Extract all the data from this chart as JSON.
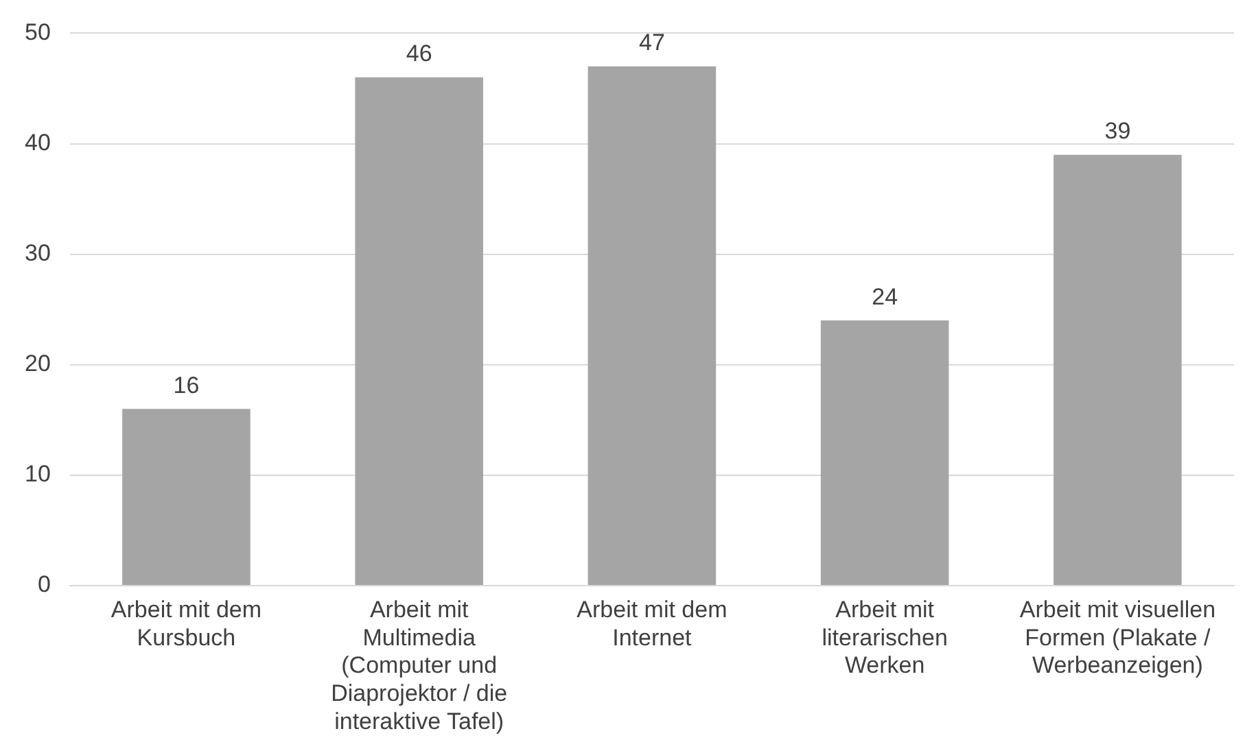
{
  "chart_data": {
    "type": "bar",
    "categories": [
      "Arbeit mit dem Kursbuch",
      "Arbeit mit Multimedia (Computer und Diaprojektor / die interaktive Tafel)",
      "Arbeit mit dem Internet",
      "Arbeit mit literarischen Werken",
      "Arbeit mit visuellen Formen (Plakate / Werbeanzeigen)"
    ],
    "values": [
      16,
      46,
      47,
      24,
      39
    ],
    "color": "#a5a5a5",
    "ylim": [
      0,
      50
    ],
    "yticks": [
      0,
      10,
      20,
      30,
      40,
      50
    ],
    "grid": "y",
    "data_labels": true,
    "legend": false
  }
}
